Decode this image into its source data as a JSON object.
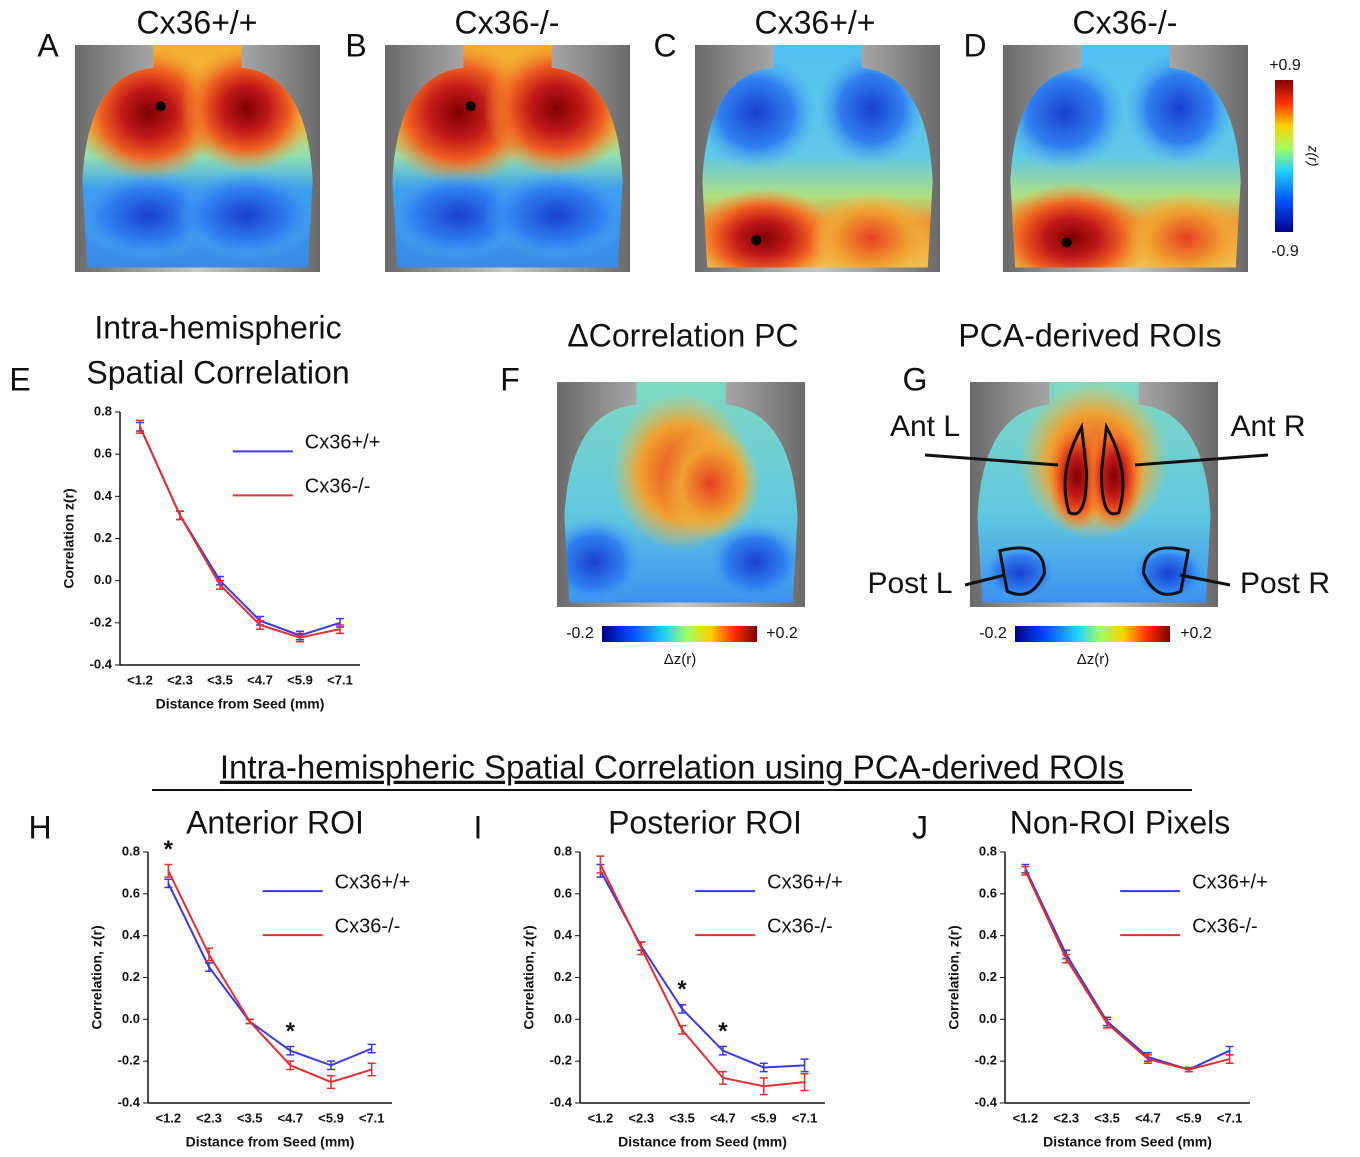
{
  "figure": {
    "panel_letters": [
      "A",
      "B",
      "C",
      "D",
      "E",
      "F",
      "G",
      "H",
      "I",
      "J"
    ],
    "map_titles": [
      "Cx36+/+",
      "Cx36-/-",
      "Cx36+/+",
      "Cx36-/-"
    ],
    "colorbar_top": {
      "top": "+0.9",
      "bottom": "-0.9",
      "label": "z(r)"
    },
    "panel_f": {
      "title": "ΔCorrelation PC",
      "min_label": "-0.2",
      "max_label": "+0.2",
      "label": "Δz(r)"
    },
    "panel_g": {
      "title": "PCA-derived ROIs",
      "min_label": "-0.2",
      "max_label": "+0.2",
      "label": "Δz(r)",
      "rois": [
        "Ant L",
        "Ant R",
        "Post L",
        "Post R"
      ]
    },
    "section_title": "Intra-hemispheric Spatial Correlation using PCA-derived ROIs"
  },
  "chart_data": [
    {
      "type": "line",
      "title": [
        "Intra-hemispheric",
        "Spatial Correlation"
      ],
      "xlabel": "Distance from Seed (mm)",
      "ylabel": "Correlation z(r)",
      "categories": [
        "<1.2",
        "<2.3",
        "<3.5",
        "<4.7",
        "<5.9",
        "<7.1"
      ],
      "ylim": [
        -0.4,
        0.8
      ],
      "yticks": [
        -0.4,
        -0.2,
        {
          "value": 0,
          "label": "0.0"
        },
        0.2,
        0.4,
        0.6,
        0.8
      ],
      "legend": "upper right",
      "series": [
        {
          "name": "Cx36+/+",
          "color": "#3a3ae0",
          "values": [
            0.73,
            0.31,
            0.0,
            -0.19,
            -0.26,
            -0.2
          ],
          "errors": [
            0.02,
            0.02,
            0.02,
            0.02,
            0.02,
            0.02
          ]
        },
        {
          "name": "Cx36-/-",
          "color": "#e03030",
          "values": [
            0.73,
            0.31,
            -0.02,
            -0.21,
            -0.27,
            -0.23
          ],
          "errors": [
            0.03,
            0.02,
            0.02,
            0.02,
            0.02,
            0.02
          ]
        }
      ]
    },
    {
      "type": "line",
      "title": "Anterior ROI",
      "xlabel": "Distance from Seed (mm)",
      "ylabel": "Correlation, z(r)",
      "categories": [
        "<1.2",
        "<2.3",
        "<3.5",
        "<4.7",
        "<5.9",
        "<7.1"
      ],
      "ylim": [
        -0.4,
        0.8
      ],
      "yticks": [
        -0.4,
        -0.2,
        {
          "value": 0,
          "label": "0.0"
        },
        0.2,
        0.4,
        0.6,
        0.8
      ],
      "legend": "upper right",
      "annotations": [
        {
          "text": "*",
          "category": "<1.2"
        },
        {
          "text": "*",
          "category": "<4.7"
        }
      ],
      "series": [
        {
          "name": "Cx36+/+",
          "color": "#3a3ae0",
          "values": [
            0.65,
            0.25,
            -0.01,
            -0.15,
            -0.22,
            -0.14
          ],
          "errors": [
            0.02,
            0.02,
            0.01,
            0.02,
            0.02,
            0.02
          ]
        },
        {
          "name": "Cx36-/-",
          "color": "#e03030",
          "values": [
            0.71,
            0.31,
            -0.01,
            -0.22,
            -0.3,
            -0.24
          ],
          "errors": [
            0.03,
            0.03,
            0.01,
            0.02,
            0.03,
            0.03
          ]
        }
      ]
    },
    {
      "type": "line",
      "title": "Posterior ROI",
      "xlabel": "Distance from Seed (mm)",
      "ylabel": "Correlation, z(r)",
      "categories": [
        "<1.2",
        "<2.3",
        "<3.5",
        "<4.7",
        "<5.9",
        "<7.1"
      ],
      "ylim": [
        -0.4,
        0.8
      ],
      "yticks": [
        -0.4,
        -0.2,
        {
          "value": 0,
          "label": "0.0"
        },
        0.2,
        0.4,
        0.6,
        0.8
      ],
      "legend": "upper right",
      "annotations": [
        {
          "text": "*",
          "category": "<3.5"
        },
        {
          "text": "*",
          "category": "<4.7"
        }
      ],
      "series": [
        {
          "name": "Cx36+/+",
          "color": "#3a3ae0",
          "values": [
            0.71,
            0.35,
            0.05,
            -0.15,
            -0.23,
            -0.22
          ],
          "errors": [
            0.03,
            0.02,
            0.02,
            0.02,
            0.02,
            0.03
          ]
        },
        {
          "name": "Cx36-/-",
          "color": "#e03030",
          "values": [
            0.74,
            0.34,
            -0.05,
            -0.28,
            -0.32,
            -0.3
          ],
          "errors": [
            0.04,
            0.03,
            0.02,
            0.03,
            0.04,
            0.04
          ]
        }
      ]
    },
    {
      "type": "line",
      "title": "Non-ROI Pixels",
      "xlabel": "Distance from Seed (mm)",
      "ylabel": "Correlation, z(r)",
      "categories": [
        "<1.2",
        "<2.3",
        "<3.5",
        "<4.7",
        "<5.9",
        "<7.1"
      ],
      "ylim": [
        -0.4,
        0.8
      ],
      "yticks": [
        -0.4,
        -0.2,
        {
          "value": 0,
          "label": "0.0"
        },
        0.2,
        0.4,
        0.6,
        0.8
      ],
      "legend": "upper right",
      "series": [
        {
          "name": "Cx36+/+",
          "color": "#3a3ae0",
          "values": [
            0.72,
            0.31,
            -0.01,
            -0.18,
            -0.24,
            -0.15
          ],
          "errors": [
            0.02,
            0.02,
            0.02,
            0.02,
            0.01,
            0.02
          ]
        },
        {
          "name": "Cx36-/-",
          "color": "#e03030",
          "values": [
            0.71,
            0.29,
            -0.02,
            -0.19,
            -0.24,
            -0.19
          ],
          "errors": [
            0.02,
            0.02,
            0.02,
            0.02,
            0.01,
            0.02
          ]
        }
      ]
    }
  ]
}
